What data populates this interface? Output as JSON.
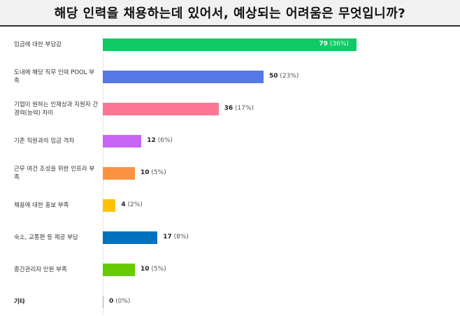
{
  "title": "해당 인력을 채용하는데 있어서, 예상되는 어려움은 무엇입니까?",
  "chart_data": {
    "type": "bar",
    "orientation": "horizontal",
    "title": "해당 인력을 채용하는데 있어서, 예상되는 어려움은 무엇입니까?",
    "grid": false,
    "categories": [
      "임금에 대한 부담감",
      "도내에 해당 직무 인력 POOL 부족",
      "기업이 원하는 인재상과 지원자 간 경력(능력) 차이",
      "기존 직원과의 임금 격차",
      "근무 여건 조성을 위한 인프라 부족",
      "채용에 대한 홍보 부족",
      "숙소, 교통편 등 제공 부담",
      "중간관리자 인원 부족",
      "기타"
    ],
    "values": [
      79,
      50,
      36,
      12,
      10,
      4,
      17,
      10,
      0
    ],
    "percent_labels": [
      "(36%)",
      "(23%)",
      "(17%)",
      "(6%)",
      "(5%)",
      "(2%)",
      "(8%)",
      "(5%)",
      "(0%)"
    ],
    "colors": [
      "#0ecb65",
      "#5578e6",
      "#fc7595",
      "#c865f7",
      "#fd9241",
      "#fdc203",
      "#0071bf",
      "#66cc00",
      "#aaaaaa"
    ]
  }
}
